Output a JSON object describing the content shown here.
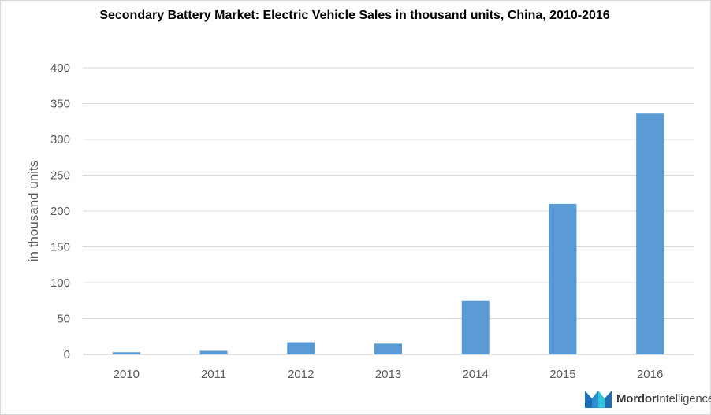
{
  "chart_data": {
    "type": "bar",
    "title": "Secondary Battery Market: Electric Vehicle Sales in thousand  units, China, 2010-2016",
    "xlabel": "",
    "ylabel": "in thousand units",
    "categories": [
      "2010",
      "2011",
      "2012",
      "2013",
      "2014",
      "2015",
      "2016"
    ],
    "values": [
      3,
      5,
      17,
      15,
      75,
      210,
      336
    ],
    "ylim": [
      0,
      400
    ],
    "yticks": [
      0,
      50,
      100,
      150,
      200,
      250,
      300,
      350,
      400
    ],
    "ytick_labels": [
      "0",
      "50",
      "100",
      "150",
      "200",
      "250",
      "300",
      "350",
      "400"
    ],
    "grid": true,
    "legend": "none",
    "bar_color": "#5b9bd5"
  },
  "logo": {
    "brand_bold": "Mordor",
    "brand_rest": "Intelligence",
    "colors": [
      "#1f77b4",
      "#2ec4d6"
    ]
  }
}
